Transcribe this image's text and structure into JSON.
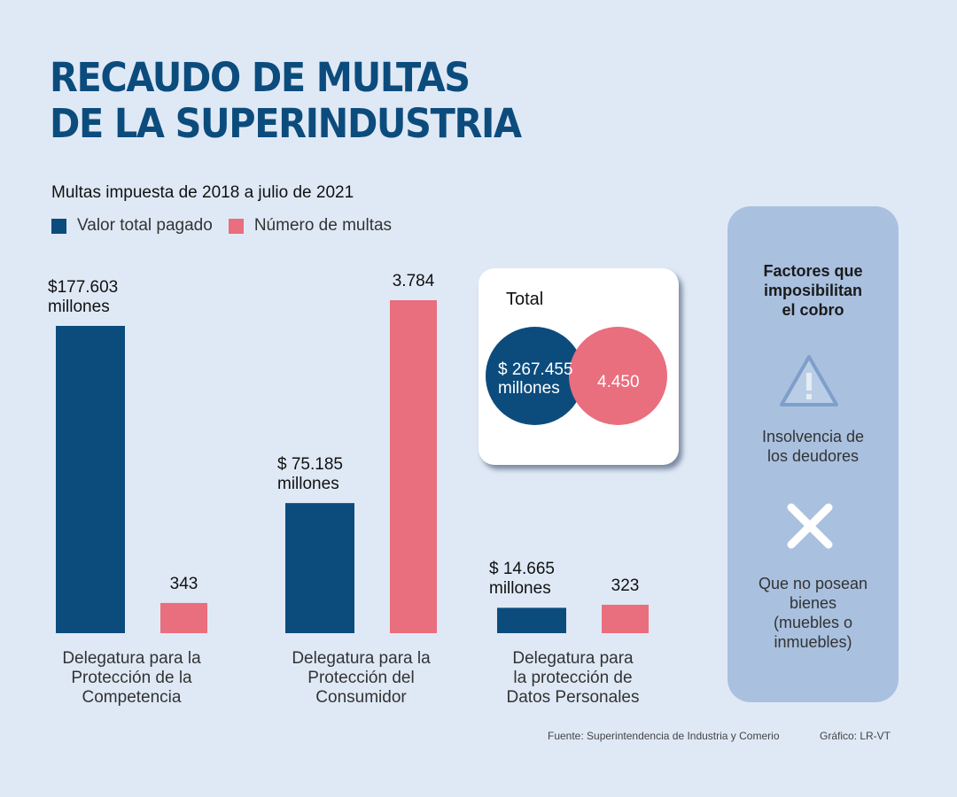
{
  "header": {
    "title_line1": "RECAUDO DE MULTAS",
    "title_line2": "DE LA SUPERINDUSTRIA",
    "subtitle": "Multas impuesta de 2018 a julio de 2021"
  },
  "legend": [
    {
      "label": "Valor total pagado",
      "color": "#0c4c7d"
    },
    {
      "label": "Número de multas",
      "color": "#e96e7e"
    }
  ],
  "chart_data": {
    "type": "bar",
    "title": "Multas impuesta de 2018 a julio de 2021",
    "categories": [
      "Delegatura para la Protección de la Competencia",
      "Delegatura para la Protección del Consumidor",
      "Delegatura para la protección de Datos Personales"
    ],
    "category_label_lines": [
      [
        "Delegatura para la",
        "Protección de la",
        "Competencia"
      ],
      [
        "Delegatura para la",
        "Protección del",
        "Consumidor"
      ],
      [
        "Delegatura para",
        "la protección de",
        "Datos Personales"
      ]
    ],
    "series": [
      {
        "name": "Valor total pagado",
        "unit": "millones de pesos",
        "color": "#0c4c7d",
        "values": [
          177603,
          75185,
          14665
        ],
        "labels": [
          [
            "$177.603",
            "millones"
          ],
          [
            "$ 75.185",
            "millones"
          ],
          [
            "$ 14.665",
            "millones"
          ]
        ]
      },
      {
        "name": "Número de multas",
        "unit": "multas",
        "color": "#e96e7e",
        "values": [
          343,
          3784,
          323
        ],
        "labels": [
          [
            "343"
          ],
          [
            "3.784"
          ],
          [
            "323"
          ]
        ]
      }
    ],
    "xlabel": "",
    "ylabel": "",
    "grid": false,
    "legend_position": "top-left"
  },
  "totals": {
    "title": "Total",
    "value_line1": "$ 267.455",
    "value_line2": "millones",
    "count": "4.450"
  },
  "factors": {
    "title_lines": [
      "Factores que",
      "imposibilitan",
      "el cobro"
    ],
    "items": [
      {
        "icon": "warning-icon",
        "lines": [
          "Insolvencia de",
          "los deudores"
        ]
      },
      {
        "icon": "x-icon",
        "lines": [
          "Que no posean",
          "bienes",
          "(muebles o",
          "inmuebles)"
        ]
      }
    ]
  },
  "footer": {
    "source": "Fuente: Superintendencia de Industria y Comerio",
    "credit": "Gráfico: LR-VT"
  }
}
